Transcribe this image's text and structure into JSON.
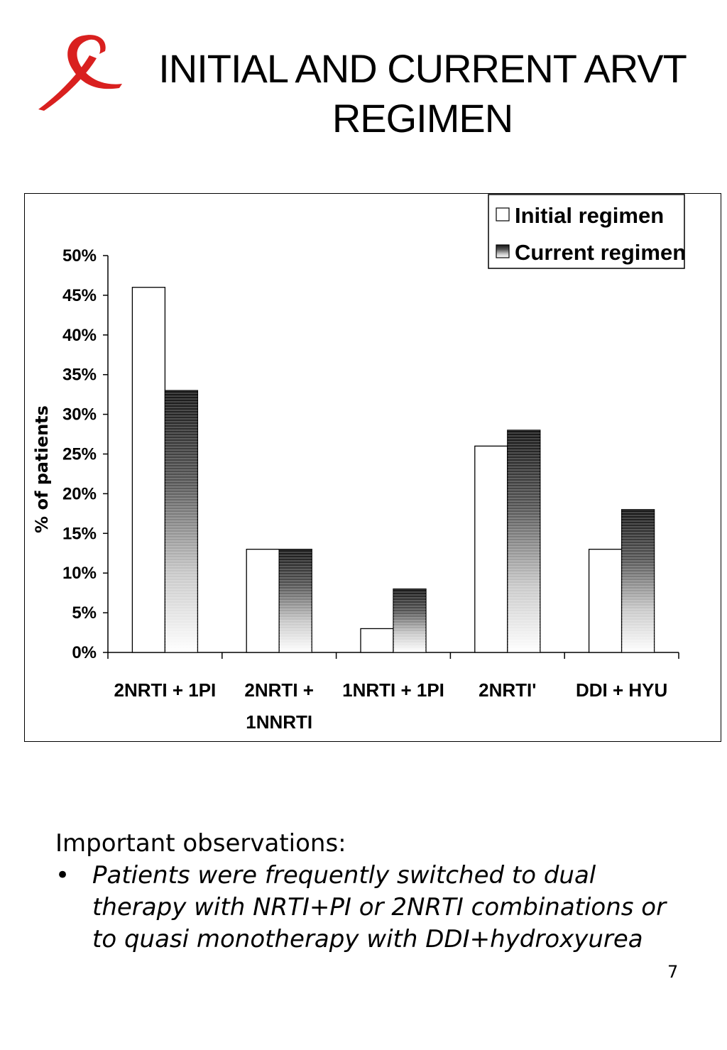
{
  "slide": {
    "title_lines": [
      "INITIAL AND CURRENT ARVT",
      "REGIMEN"
    ],
    "page_number": "7",
    "logo_icon": "red-ribbon-icon",
    "colors": {
      "ribbon": "#d9201f",
      "initial_fill": "#ffffff",
      "current_top": "#1a1a1a",
      "current_bottom": "#ffffff"
    }
  },
  "chart_data": {
    "type": "bar",
    "title": "",
    "xlabel": "",
    "ylabel": "% of patients",
    "categories": [
      "2NRTI + 1PI",
      "2NRTI + 1NNRTI",
      "1NRTI + 1PI",
      "2NRTI'",
      "DDI + HYU"
    ],
    "category_lines": [
      [
        "2NRTI + 1PI"
      ],
      [
        "2NRTI +",
        "1NNRTI"
      ],
      [
        "1NRTI + 1PI"
      ],
      [
        "2NRTI'"
      ],
      [
        "DDI + HYU"
      ]
    ],
    "series": [
      {
        "name": "Initial regimen",
        "values": [
          46,
          13,
          3,
          26,
          13
        ]
      },
      {
        "name": "Current regimen",
        "values": [
          33,
          13,
          8,
          28,
          18
        ]
      }
    ],
    "y_ticks": [
      0,
      5,
      10,
      15,
      20,
      25,
      30,
      35,
      40,
      45,
      50
    ],
    "y_tick_labels": [
      "0%",
      "5%",
      "10%",
      "15%",
      "20%",
      "25%",
      "30%",
      "35%",
      "40%",
      "45%",
      "50%"
    ],
    "ylim": [
      0,
      50
    ],
    "grid": false,
    "legend_position": "top-right"
  },
  "observations": {
    "heading": "Important observations:",
    "bullet_glyph": "•",
    "bullets": [
      "Patients were frequently switched to dual therapy with NRTI+PI or 2NRTI combinations or to quasi monotherapy with DDI+hydroxyurea"
    ]
  }
}
